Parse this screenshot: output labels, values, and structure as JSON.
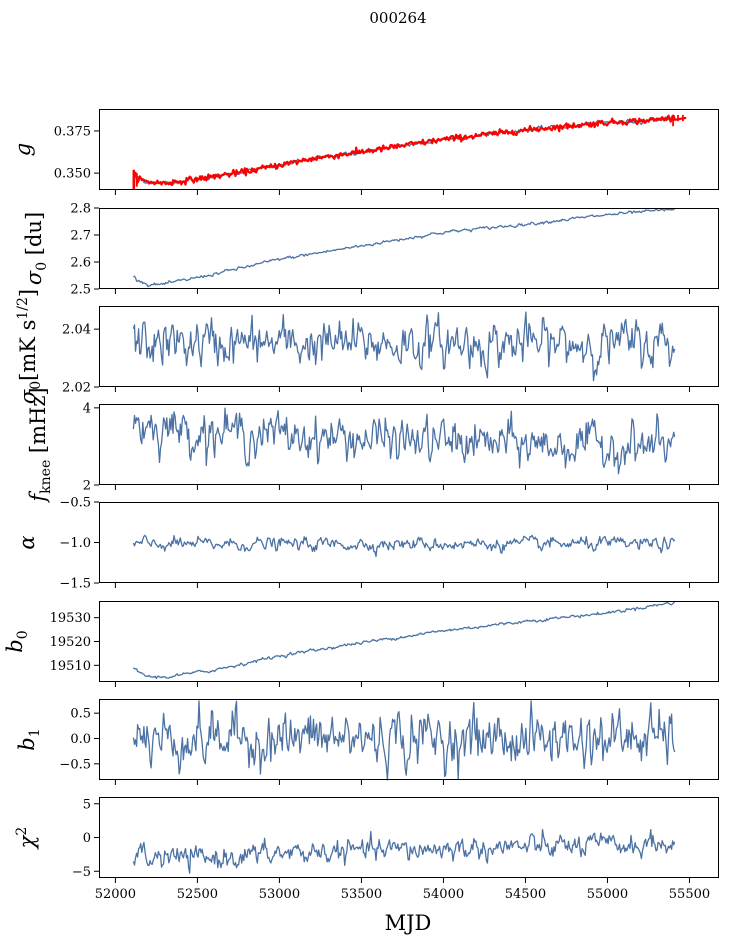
{
  "figure": {
    "title": "000264"
  },
  "colors": {
    "series": "#4c72a4",
    "overlay": "#ff0000",
    "axis": "#000000"
  },
  "chart_data": [
    {
      "type": "line",
      "ylabel": "g",
      "ylim": [
        0.34,
        0.388
      ],
      "yticks": [
        0.35,
        0.375
      ],
      "ytick_labels": [
        "0.350",
        "0.375"
      ],
      "xlim": [
        51900,
        55680
      ],
      "x_range": [
        52110,
        55410
      ],
      "trend": {
        "kind": "poly",
        "points": [
          [
            52110,
            0.3488
          ],
          [
            52180,
            0.345
          ],
          [
            52300,
            0.344
          ],
          [
            52500,
            0.3465
          ],
          [
            52800,
            0.351
          ],
          [
            53200,
            0.3585
          ],
          [
            53600,
            0.364
          ],
          [
            54000,
            0.37
          ],
          [
            54500,
            0.3755
          ],
          [
            55000,
            0.38
          ],
          [
            55250,
            0.3812
          ],
          [
            55410,
            0.383
          ]
        ]
      },
      "noise": 0.0006,
      "overlay_series": "red calibration trace with spikes near 52110 and 55420"
    },
    {
      "type": "line",
      "ylabel": "σ0 [du]",
      "ylim": [
        2.5,
        2.8
      ],
      "yticks": [
        2.5,
        2.6,
        2.7,
        2.8
      ],
      "ytick_labels": [
        "2.5",
        "2.6",
        "2.7",
        "2.8"
      ],
      "xlim": [
        51900,
        55680
      ],
      "x_range": [
        52110,
        55410
      ],
      "trend": {
        "kind": "poly",
        "points": [
          [
            52110,
            2.545
          ],
          [
            52200,
            2.515
          ],
          [
            52300,
            2.518
          ],
          [
            52600,
            2.555
          ],
          [
            53000,
            2.61
          ],
          [
            53500,
            2.66
          ],
          [
            54000,
            2.71
          ],
          [
            54500,
            2.74
          ],
          [
            55000,
            2.775
          ],
          [
            55410,
            2.795
          ]
        ]
      },
      "noise": 0.003
    },
    {
      "type": "line",
      "ylabel": "σ0[mK s1/2]",
      "ylim": [
        2.02,
        2.048
      ],
      "yticks": [
        2.02,
        2.04
      ],
      "ytick_labels": [
        "2.02",
        "2.04"
      ],
      "xlim": [
        51900,
        55680
      ],
      "x_range": [
        52110,
        55410
      ],
      "trend": {
        "kind": "flat",
        "mean": 2.035
      },
      "noise": 0.004
    },
    {
      "type": "line",
      "ylabel": "fknee [mHz]",
      "ylim": [
        2.0,
        4.1
      ],
      "yticks": [
        2,
        4
      ],
      "ytick_labels": [
        "2",
        "4"
      ],
      "xlim": [
        51900,
        55680
      ],
      "x_range": [
        52110,
        55410
      ],
      "trend": {
        "kind": "poly",
        "points": [
          [
            52110,
            3.6
          ],
          [
            52500,
            3.4
          ],
          [
            53500,
            3.2
          ],
          [
            54500,
            3.05
          ],
          [
            55410,
            3.0
          ]
        ]
      },
      "noise": 0.28
    },
    {
      "type": "line",
      "ylabel": "α",
      "ylim": [
        -1.5,
        -0.5
      ],
      "yticks": [
        -1.5,
        -1.0,
        -0.5
      ],
      "ytick_labels": [
        "−1.5",
        "−1.0",
        "−0.5"
      ],
      "xlim": [
        51900,
        55680
      ],
      "x_range": [
        52110,
        55410
      ],
      "trend": {
        "kind": "flat",
        "mean": -1.02
      },
      "noise": 0.04
    },
    {
      "type": "line",
      "ylabel": "b0",
      "ylim": [
        19503,
        19537
      ],
      "yticks": [
        19510,
        19520,
        19530
      ],
      "ytick_labels": [
        "19510",
        "19520",
        "19530"
      ],
      "xlim": [
        51900,
        55680
      ],
      "x_range": [
        52110,
        55410
      ],
      "trend": {
        "kind": "poly",
        "points": [
          [
            52110,
            19508.5
          ],
          [
            52200,
            19505.2
          ],
          [
            52300,
            19505.0
          ],
          [
            52600,
            19508.0
          ],
          [
            53000,
            19514.0
          ],
          [
            53500,
            19519.5
          ],
          [
            54000,
            19524.5
          ],
          [
            54500,
            19528.5
          ],
          [
            55000,
            19532.0
          ],
          [
            55410,
            19536.5
          ]
        ]
      },
      "noise": 0.35
    },
    {
      "type": "line",
      "ylabel": "b1",
      "ylim": [
        -0.82,
        0.78
      ],
      "yticks": [
        -0.5,
        0.0,
        0.5
      ],
      "ytick_labels": [
        "−0.5",
        "0.0",
        "0.5"
      ],
      "xlim": [
        51900,
        55680
      ],
      "x_range": [
        52110,
        55410
      ],
      "trend": {
        "kind": "flat",
        "mean": 0.0
      },
      "noise": 0.27
    },
    {
      "type": "line",
      "ylabel": "χ2",
      "ylim": [
        -6,
        6
      ],
      "yticks": [
        -5,
        0,
        5
      ],
      "ytick_labels": [
        "−5",
        "0",
        "5"
      ],
      "xlabel": "MJD",
      "xticks": [
        52000,
        52500,
        53000,
        53500,
        54000,
        54500,
        55000,
        55500
      ],
      "xtick_labels": [
        "52000",
        "52500",
        "53000",
        "53500",
        "54000",
        "54500",
        "55000",
        "55500"
      ],
      "xlim": [
        51900,
        55680
      ],
      "x_range": [
        52110,
        55410
      ],
      "trend": {
        "kind": "poly",
        "points": [
          [
            52110,
            -2.8
          ],
          [
            52500,
            -3.2
          ],
          [
            53000,
            -2.4
          ],
          [
            53500,
            -2.0
          ],
          [
            54000,
            -1.7
          ],
          [
            54500,
            -1.4
          ],
          [
            55000,
            -1.2
          ],
          [
            55410,
            -1.0
          ]
        ]
      },
      "noise": 0.85
    }
  ]
}
